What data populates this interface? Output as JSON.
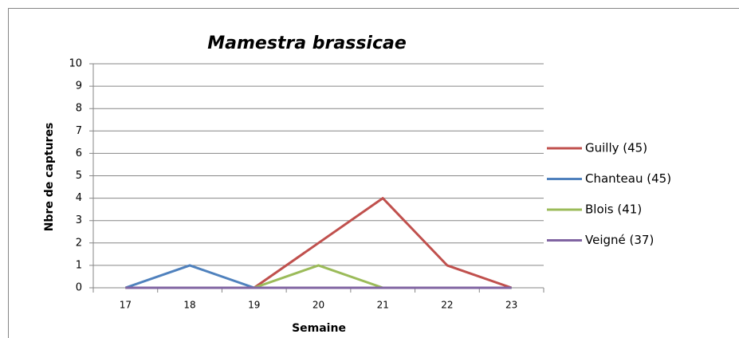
{
  "chart_data": {
    "type": "line",
    "title": "Mamestra  brassicae",
    "x_label": "Semaine",
    "y_label": "Nbre de captures",
    "categories": [
      "17",
      "18",
      "19",
      "20",
      "21",
      "22",
      "23"
    ],
    "series": [
      {
        "name": "Guilly (45)",
        "color": "#c0504d",
        "values": [
          0,
          0,
          0,
          2,
          4,
          1,
          0
        ]
      },
      {
        "name": "Chanteau (45)",
        "color": "#4f81bd",
        "values": [
          0,
          1,
          0,
          0,
          0,
          0,
          0
        ]
      },
      {
        "name": "Blois (41)",
        "color": "#9bbb59",
        "values": [
          0,
          0,
          0,
          1,
          0,
          0,
          0
        ]
      },
      {
        "name": "Veigné (37)",
        "color": "#8064a2",
        "values": [
          0,
          0,
          0,
          0,
          0,
          0,
          0
        ]
      }
    ],
    "ylim": [
      0,
      10
    ],
    "yticks": [
      0,
      1,
      2,
      3,
      4,
      5,
      6,
      7,
      8,
      9,
      10
    ],
    "grid": true,
    "legend": "right"
  }
}
